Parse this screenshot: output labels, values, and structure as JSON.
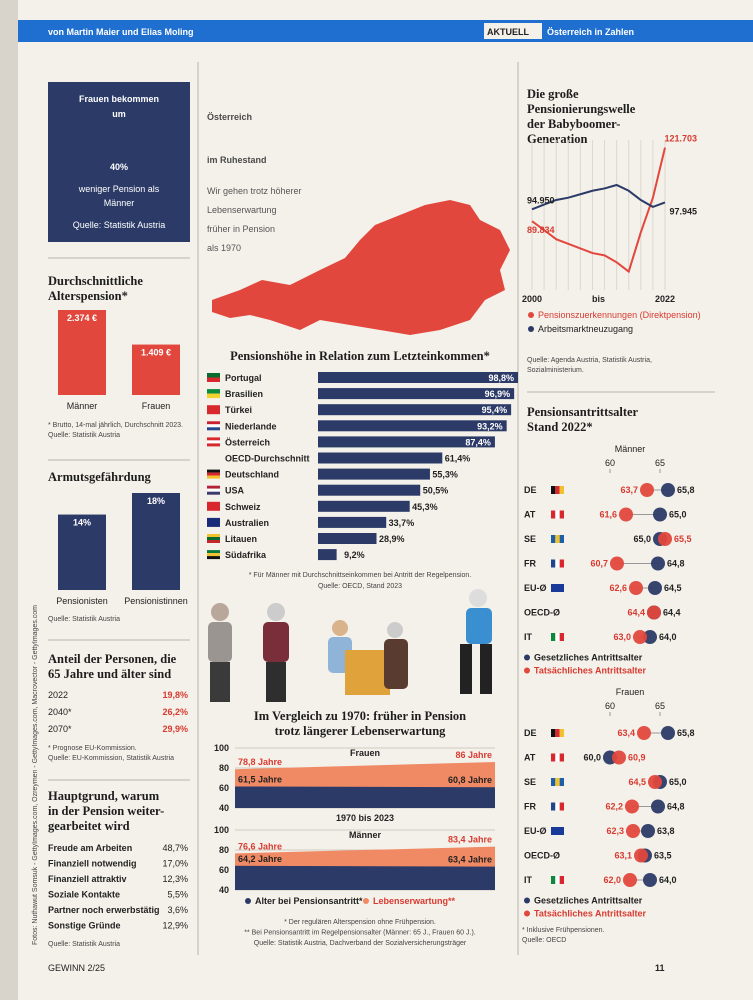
{
  "header": {
    "authors": "von Martin Maier und Elias Moling",
    "tag": "AKTUELL",
    "section": "Österreich in Zahlen"
  },
  "title": [
    "Österreich",
    "im Ruhestand"
  ],
  "subtitle": [
    "Wir gehen trotz höherer",
    "Lebenserwartung",
    "früher in Pension",
    "als 1970"
  ],
  "highlight": {
    "text_top": [
      "Frauen bekommen",
      "um"
    ],
    "figure": "40%",
    "text_bottom": [
      "weniger Pension als",
      "Männer"
    ],
    "source": "Quelle: Statistik Austria"
  },
  "average_pension": {
    "type": "bar",
    "title": [
      "Durchschnittliche",
      "Alterspension*"
    ],
    "categories": [
      "Männer",
      "Frauen"
    ],
    "values": [
      2374,
      1409
    ],
    "value_labels": [
      "2.374 €",
      "1.409 €"
    ],
    "color": "#e2473d",
    "note": "* Brutto, 14-mal jährlich, Durchschnitt 2023.",
    "source": "Quelle: Statistik Austria"
  },
  "poverty": {
    "type": "bar",
    "title": [
      "Armutsgefährdung"
    ],
    "categories": [
      "Pensionisten",
      "Pensionistinnen"
    ],
    "values": [
      14,
      18
    ],
    "value_labels": [
      "14%",
      "18%"
    ],
    "color": "#2b3a67",
    "source": "Quelle: Statistik Austria"
  },
  "share_65": {
    "title": [
      "Anteil der Personen, die",
      "65 Jahre und älter sind"
    ],
    "rows": [
      [
        "2022",
        "19,8%"
      ],
      [
        "2040*",
        "26,2%"
      ],
      [
        "2070*",
        "29,9%"
      ]
    ],
    "note": "* Prognose EU-Kommission.",
    "source": "Quelle: EU-Kommission, Statistik Austria"
  },
  "reasons": {
    "title": [
      "Hauptgrund, warum",
      "in der Pension weiter-",
      "gearbeitet wird"
    ],
    "rows": [
      [
        "Freude am Arbeiten",
        "48,7%"
      ],
      [
        "Finanziell notwendig",
        "17,0%"
      ],
      [
        "Finanziell attraktiv",
        "12,3%"
      ],
      [
        "Soziale Kontakte",
        "5,5%"
      ],
      [
        "Partner noch erwerbstätig",
        "3,6%"
      ],
      [
        "Sonstige Gründe",
        "12,9%"
      ]
    ],
    "source": "Quelle: Statistik Austria"
  },
  "replacement": {
    "type": "hbar",
    "title": "Pensionshöhe in Relation zum Letzteinkommen*",
    "categories": [
      "Portugal",
      "Brasilien",
      "Türkei",
      "Niederlande",
      "Österreich",
      "OECD-Durchschnitt",
      "Deutschland",
      "USA",
      "Schweiz",
      "Australien",
      "Litauen",
      "Südafrika"
    ],
    "values": [
      98.8,
      96.9,
      95.4,
      93.2,
      87.4,
      61.4,
      55.3,
      50.5,
      45.3,
      33.7,
      28.9,
      9.2
    ],
    "value_labels": [
      "98,8%",
      "96,9%",
      "95,4%",
      "93,2%",
      "87,4%",
      "61,4%",
      "55,3%",
      "50,5%",
      "45,3%",
      "33,7%",
      "28,9%",
      "9,2%"
    ],
    "color": "#2b3a67",
    "note": "* Für Männer mit Durchschnittseinkommen bei Antritt der Regelpension.",
    "source": "Quelle: OECD, Stand 2023"
  },
  "comparison": {
    "title": [
      "Im Vergleich zu 1970: früher in Pension",
      "trotz längerer Lebenserwartung"
    ],
    "xlabel": "1970 bis 2023",
    "panels": [
      {
        "type": "area",
        "title": "Frauen",
        "x": [
          1970,
          2023
        ],
        "ylim": [
          40,
          100
        ],
        "yticks": [
          40,
          60,
          80,
          100
        ],
        "series": [
          {
            "name": "Alter bei Pensionsantritt*",
            "color": "#2b3a67",
            "values": [
              61.5,
              60.8
            ],
            "value_labels": [
              "61,5 Jahre",
              "60,8 Jahre"
            ]
          },
          {
            "name": "Lebenserwartung**",
            "color": "#f08a64",
            "values": [
              78.8,
              86
            ],
            "value_labels": [
              "78,8 Jahre",
              "86 Jahre"
            ]
          }
        ]
      },
      {
        "type": "area",
        "title": "Männer",
        "x": [
          1970,
          2023
        ],
        "ylim": [
          40,
          100
        ],
        "yticks": [
          40,
          60,
          80,
          100
        ],
        "series": [
          {
            "name": "Alter bei Pensionsantritt*",
            "color": "#2b3a67",
            "values": [
              64.2,
              63.4
            ],
            "value_labels": [
              "64,2 Jahre",
              "63,4 Jahre"
            ]
          },
          {
            "name": "Lebenserwartung**",
            "color": "#f08a64",
            "values": [
              76.6,
              83.4
            ],
            "value_labels": [
              "76,6 Jahre",
              "83,4 Jahre"
            ]
          }
        ]
      }
    ],
    "notes": [
      "* Der regulären Alterspension ohne Frühpension.",
      "** Bei Pensionsantritt im Regelpensionsalter (Männer: 65 J., Frauen 60 J.).",
      "Quelle: Statistik Austria, Dachverband der Sozialversicherungsträger"
    ]
  },
  "babyboomer": {
    "type": "line",
    "title": [
      "Die große",
      "Pensionierungswelle",
      "der Babyboomer-",
      "Generation"
    ],
    "categories": [
      "2000",
      null,
      null,
      null,
      null,
      null,
      null,
      null,
      null,
      null,
      null,
      "2022"
    ],
    "x_connector": "bis",
    "ylim": [
      60000,
      125000
    ],
    "series": [
      {
        "name": "Pensionszuerkennungen (Direktpension)",
        "color": "#e2473d",
        "values": [
          89834,
          86000,
          82000,
          80000,
          78000,
          76000,
          75000,
          72000,
          68000,
          85000,
          100000,
          121703
        ],
        "value_labels": [
          "89.834",
          null,
          null,
          null,
          null,
          null,
          null,
          null,
          null,
          null,
          null,
          "121.703"
        ]
      },
      {
        "name": "Arbeitsmarktneuzugang",
        "color": "#2b3a67",
        "values": [
          94950,
          97000,
          99000,
          100000,
          101500,
          103000,
          104000,
          105500,
          103000,
          99000,
          96000,
          97945
        ],
        "value_labels": [
          "94.950",
          null,
          null,
          null,
          null,
          null,
          null,
          null,
          null,
          null,
          null,
          "97.945"
        ]
      }
    ],
    "source": [
      "Quelle: Agenda Austria, Statistik Austria,",
      "Sozialministerium."
    ]
  },
  "retirement_age": {
    "title": [
      "Pensionsantrittsalter",
      "Stand 2022*"
    ],
    "panels": [
      {
        "type": "dumbbell",
        "title": "Männer",
        "categories": [
          "DE",
          "AT",
          "SE",
          "FR",
          "EU-Ø",
          "OECD-Ø",
          "IT"
        ],
        "xlim": [
          57,
          67
        ],
        "xticks": [
          60,
          65
        ],
        "series": [
          {
            "name": "Gesetzliches Antrittsalter",
            "color": "#2b3a67",
            "values": [
              65.8,
              65.0,
              65.0,
              64.8,
              64.5,
              64.4,
              64.0
            ],
            "value_labels": [
              "65,8",
              "65,0",
              "65,0",
              "64,8",
              "64,5",
              "64,4",
              "64,0"
            ]
          },
          {
            "name": "Tatsächliches Antrittsalter",
            "color": "#e2473d",
            "values": [
              63.7,
              61.6,
              65.5,
              60.7,
              62.6,
              64.4,
              63.0
            ],
            "value_labels": [
              "63,7",
              "61,6",
              "65,5",
              "60,7",
              "62,6",
              "64,4",
              "63,0"
            ]
          }
        ]
      },
      {
        "type": "dumbbell",
        "title": "Frauen",
        "categories": [
          "DE",
          "AT",
          "SE",
          "FR",
          "EU-Ø",
          "OECD-Ø",
          "IT"
        ],
        "xlim": [
          57,
          67
        ],
        "xticks": [
          60,
          65
        ],
        "series": [
          {
            "name": "Gesetzliches Antrittsalter",
            "color": "#2b3a67",
            "values": [
              65.8,
              60.0,
              65.0,
              64.8,
              63.8,
              63.5,
              64.0
            ],
            "value_labels": [
              "65,8",
              "60,0",
              "65,0",
              "64,8",
              "63,8",
              "63,5",
              "64,0"
            ]
          },
          {
            "name": "Tatsächliches Antrittsalter",
            "color": "#e2473d",
            "values": [
              63.4,
              60.9,
              64.5,
              62.2,
              62.3,
              63.1,
              62.0
            ],
            "value_labels": [
              "63,4",
              "60,9",
              "64,5",
              "62,2",
              "62,3",
              "63,1",
              "62,0"
            ]
          }
        ]
      }
    ],
    "note": "* Inklusive Frühpensionen.",
    "source": "Quelle: OECD"
  },
  "photo_credit": "Fotos: Nuthawut Somsuk - GettyImages.com, Ozreymen - GettyImages.com, Macrovector - GettyImages.com",
  "footer": {
    "magazine": "GEWINN 2/25",
    "page": "11"
  }
}
